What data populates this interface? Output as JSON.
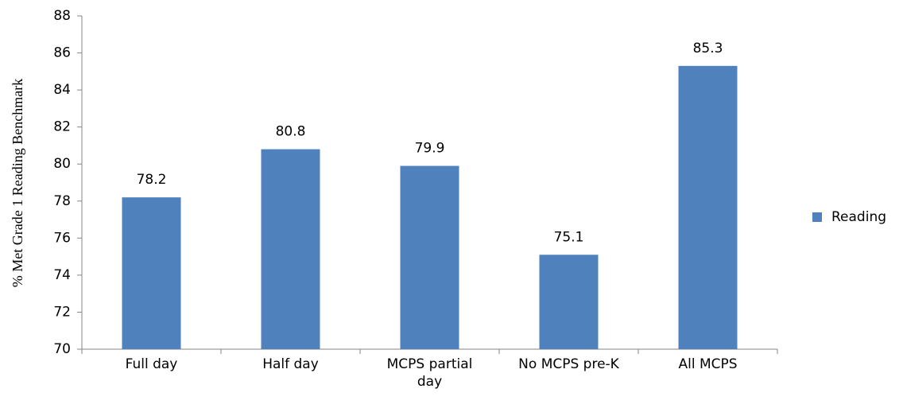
{
  "chart_data": {
    "type": "bar",
    "y_label": "% Met Grade 1 Reading Benchmark",
    "categories": [
      "Full day",
      "Half day",
      "MCPS partial day",
      "No MCPS pre-K",
      "All MCPS"
    ],
    "series": [
      {
        "name": "Reading",
        "color": "#4f81bd",
        "values": [
          78.2,
          80.8,
          79.9,
          75.1,
          85.3
        ]
      }
    ],
    "ylim": [
      70,
      88
    ],
    "yticks": [
      70,
      72,
      74,
      76,
      78,
      80,
      82,
      84,
      86,
      88
    ],
    "grid": false,
    "legend": "right",
    "data_labels": true
  }
}
